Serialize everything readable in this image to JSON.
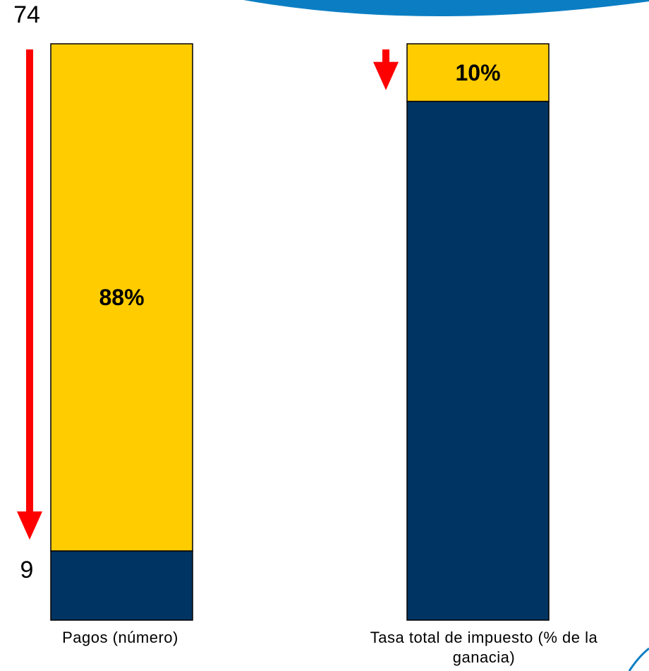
{
  "colors": {
    "before_segment": "#FFCC00",
    "after_segment": "#003462",
    "arrow": "#FF0000",
    "outline": "#000000",
    "banner": "#0B7EC3"
  },
  "chart_data": {
    "type": "bar",
    "stacked": true,
    "units": "percent of original value",
    "bars": [
      {
        "category_lines": [
          "Pagos (número)"
        ],
        "start_value": 74,
        "end_value": 9,
        "start_label": "74",
        "end_label": "9",
        "remaining_percent": 12,
        "reduction_percent": 88,
        "reduction_label": "88%"
      },
      {
        "category_lines": [
          "Tasa total de impuesto (% de la",
          "ganacia)"
        ],
        "start_value": null,
        "end_value": null,
        "start_label": "",
        "end_label": "",
        "remaining_percent": 90,
        "reduction_percent": 10,
        "reduction_label": "10%"
      }
    ],
    "ylim": [
      0,
      100
    ],
    "grid": false,
    "legend": "none"
  }
}
